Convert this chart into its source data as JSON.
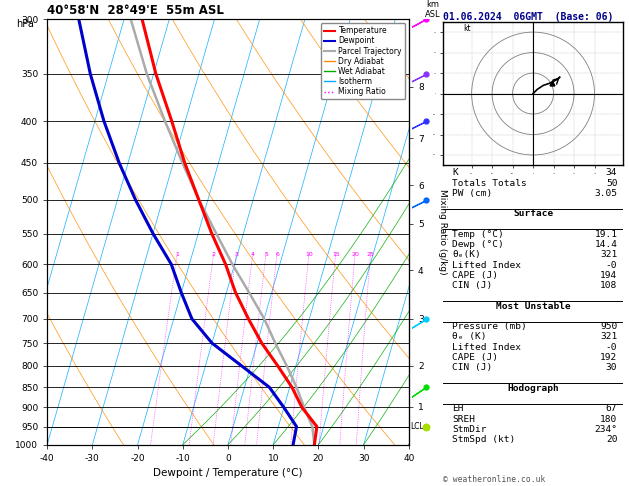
{
  "title_left": "40°58'N  28°49'E  55m ASL",
  "title_right": "01.06.2024  06GMT  (Base: 06)",
  "xlabel": "Dewpoint / Temperature (°C)",
  "pressure_levels": [
    300,
    350,
    400,
    450,
    500,
    550,
    600,
    650,
    700,
    750,
    800,
    850,
    900,
    950,
    1000
  ],
  "pmin": 300,
  "pmax": 1000,
  "temp_pressure": [
    1000,
    950,
    900,
    850,
    800,
    750,
    700,
    650,
    600,
    550,
    500,
    450,
    400,
    350,
    300
  ],
  "temp_values": [
    19.1,
    18.5,
    14.0,
    10.5,
    6.0,
    1.0,
    -3.5,
    -8.0,
    -12.0,
    -17.0,
    -22.0,
    -27.5,
    -33.0,
    -39.5,
    -46.0
  ],
  "dewp_pressure": [
    1000,
    950,
    900,
    850,
    800,
    750,
    700,
    650,
    600,
    550,
    500,
    450,
    400,
    350,
    300
  ],
  "dewp_values": [
    14.4,
    14.0,
    10.0,
    5.5,
    -2.0,
    -10.0,
    -16.0,
    -20.0,
    -24.0,
    -30.0,
    -36.0,
    -42.0,
    -48.0,
    -54.0,
    -60.0
  ],
  "parcel_pressure": [
    1000,
    950,
    900,
    850,
    800,
    750,
    700,
    650,
    600,
    550,
    500,
    450,
    400,
    350,
    300
  ],
  "parcel_values": [
    19.1,
    17.5,
    14.5,
    11.5,
    8.0,
    4.0,
    0.0,
    -5.0,
    -10.5,
    -16.0,
    -22.0,
    -28.0,
    -34.5,
    -41.5,
    -48.5
  ],
  "lcl_pressure": 950,
  "color_temp": "#ff0000",
  "color_dewp": "#0000cc",
  "color_parcel": "#aaaaaa",
  "color_dry": "#ff8c00",
  "color_wet": "#00aa00",
  "color_iso": "#00aaff",
  "color_mix": "#ff00ff",
  "mixing_ratios": [
    1,
    2,
    3,
    4,
    5,
    6,
    10,
    15,
    20,
    25
  ],
  "km_asl": [
    1,
    2,
    3,
    4,
    5,
    6,
    7,
    8
  ],
  "km_pressures": [
    898,
    800,
    700,
    610,
    535,
    480,
    420,
    363
  ],
  "wind_pressures": [
    300,
    350,
    400,
    500,
    700,
    850,
    950
  ],
  "wind_colors": [
    "#ff00ff",
    "#8833ff",
    "#3333ff",
    "#0066ff",
    "#00ccff",
    "#00dd00",
    "#aadd00"
  ],
  "wind_u": [
    15,
    12,
    10,
    8,
    5,
    3,
    2
  ],
  "wind_v": [
    8,
    6,
    5,
    4,
    3,
    2,
    1
  ],
  "K": 34,
  "TT": 50,
  "PW": "3.05",
  "surf_temp": "19.1",
  "surf_dewp": "14.4",
  "surf_theta_e": "321",
  "surf_li": "-0",
  "surf_cape": "194",
  "surf_cin": "108",
  "mu_pressure": "950",
  "mu_theta_e": "321",
  "mu_li": "-0",
  "mu_cape": "192",
  "mu_cin": "30",
  "hodo_eh": "67",
  "hodo_sreh": "180",
  "hodo_stmdir": "234°",
  "hodo_stmspd": "20",
  "hodo_u": [
    0,
    2,
    5,
    8,
    10,
    12,
    13
  ],
  "hodo_v": [
    0,
    2,
    4,
    5,
    6,
    7,
    8
  ],
  "hodo_storm_u": 9,
  "hodo_storm_v": 5,
  "hodo_rings": [
    10,
    20,
    30
  ]
}
